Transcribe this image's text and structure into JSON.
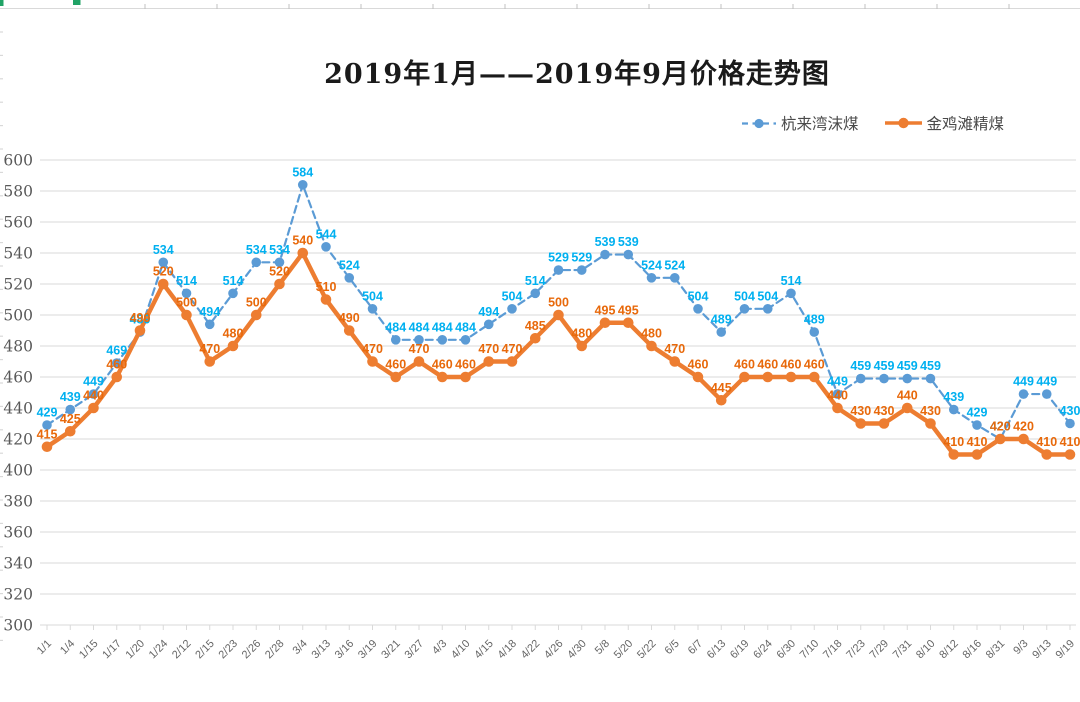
{
  "title": "2019年1月——2019年9月价格走势图",
  "legend": {
    "items": [
      {
        "label": "杭来湾沫煤",
        "color": "#5B9BD5",
        "style": "dashed"
      },
      {
        "label": "金鸡滩精煤",
        "color": "#ED7D31",
        "style": "solid"
      }
    ]
  },
  "axes": {
    "y_ticks": [
      300,
      320,
      340,
      360,
      380,
      400,
      420,
      440,
      460,
      480,
      500,
      520,
      540,
      560,
      580,
      600
    ]
  },
  "decor": {
    "gridline_color": "#d9d9d9",
    "tick_color": "#c0c0c0",
    "spreadsheet_selection_green": "#21a366"
  },
  "chart_data": {
    "type": "line",
    "title": "2019年1月——2019年9月价格走势图",
    "categories": [
      "1/1",
      "1/4",
      "1/15",
      "1/17",
      "1/20",
      "1/24",
      "2/12",
      "2/15",
      "2/23",
      "2/26",
      "2/28",
      "3/4",
      "3/13",
      "3/16",
      "3/19",
      "3/21",
      "3/27",
      "4/3",
      "4/10",
      "4/15",
      "4/18",
      "4/22",
      "4/26",
      "4/30",
      "5/8",
      "5/20",
      "5/22",
      "6/5",
      "6/7",
      "6/13",
      "6/19",
      "6/24",
      "6/30",
      "7/10",
      "7/18",
      "7/23",
      "7/29",
      "7/31",
      "8/10",
      "8/12",
      "8/16",
      "8/31",
      "9/3",
      "9/13",
      "9/19"
    ],
    "series": [
      {
        "name": "杭来湾沫煤",
        "color": "#5B9BD5",
        "label_color": "#00B0F0",
        "line_style": "dashed",
        "values": [
          429,
          439,
          449,
          469,
          489,
          534,
          514,
          494,
          514,
          534,
          534,
          584,
          544,
          524,
          504,
          484,
          484,
          484,
          484,
          494,
          504,
          514,
          529,
          529,
          539,
          539,
          524,
          524,
          504,
          489,
          504,
          504,
          514,
          489,
          449,
          459,
          459,
          459,
          459,
          439,
          429,
          420,
          449,
          449,
          430
        ]
      },
      {
        "name": "金鸡滩精煤",
        "color": "#ED7D31",
        "label_color": "#E8690B",
        "line_style": "solid",
        "values": [
          415,
          425,
          440,
          460,
          490,
          520,
          500,
          470,
          480,
          500,
          520,
          540,
          510,
          490,
          470,
          460,
          470,
          460,
          460,
          470,
          470,
          485,
          500,
          480,
          495,
          495,
          480,
          470,
          460,
          445,
          460,
          460,
          460,
          460,
          440,
          430,
          430,
          440,
          430,
          410,
          410,
          420,
          420,
          410,
          410
        ]
      }
    ],
    "ylim": [
      300,
      600
    ],
    "ytick_step": 20,
    "grid": "horizontal-only",
    "legend_position": "top-right",
    "data_labels": true
  }
}
